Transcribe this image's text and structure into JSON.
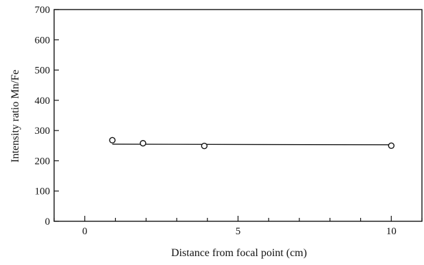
{
  "chart_data": {
    "type": "scatter",
    "title": "",
    "xlabel": "Distance from focal point (cm)",
    "ylabel": "Intensity ratio Mn/Fe",
    "xlim": [
      -1,
      11
    ],
    "ylim": [
      0,
      700
    ],
    "x_ticks": [
      0,
      5,
      10
    ],
    "x_tick_labels": [
      "0",
      "5",
      "10"
    ],
    "x_minor_step": 1,
    "y_ticks": [
      0,
      100,
      200,
      300,
      400,
      500,
      600,
      700
    ],
    "y_tick_labels": [
      "0",
      "100",
      "200",
      "300",
      "400",
      "500",
      "600",
      "700"
    ],
    "grid": false,
    "series": [
      {
        "marker": "open-circle",
        "x": [
          0.9,
          1.9,
          3.9,
          10.0
        ],
        "y": [
          268,
          258,
          249,
          250
        ]
      }
    ],
    "trend_line": {
      "x": [
        0.9,
        10.0
      ],
      "y": [
        255,
        253
      ]
    }
  }
}
